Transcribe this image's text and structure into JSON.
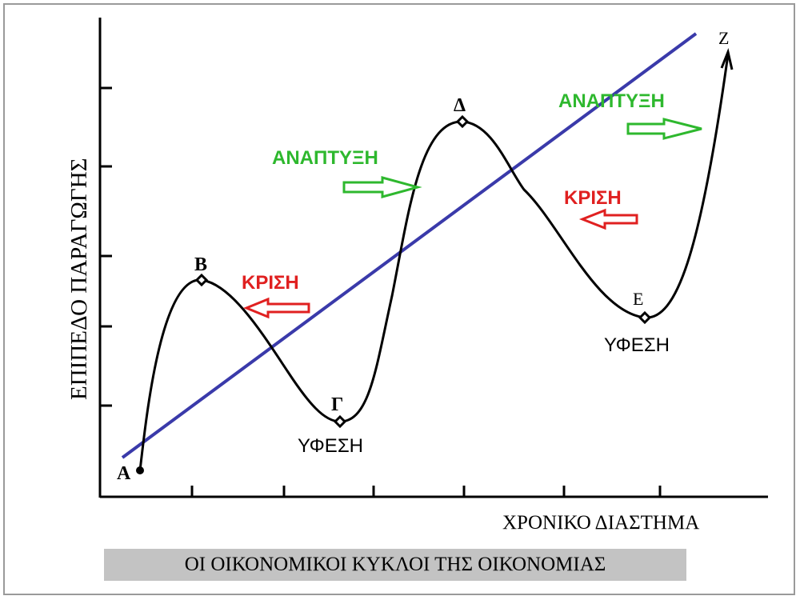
{
  "diagram": {
    "y_axis_label": "ΕΠΙΠΕΔΟ ΠΑΡΑΓΩΓΗΣ",
    "x_axis_label": "ΧΡΟΝΙΚΟ ΔΙΑΣΤΗΜΑ",
    "caption": "ΟΙ ΟΙΚΟΝΟΜΙΚΟΙ ΚΥΚΛΟΙ ΤΗΣ ΟΙΚΟΝΟΜΙΑΣ",
    "points": {
      "a": "Α",
      "b": "Β",
      "g": "Γ",
      "d": "Δ",
      "e": "Ε",
      "z": "Ζ"
    },
    "phases": {
      "crisis_1": "ΚΡΙΣΗ",
      "crisis_2": "ΚΡΙΣΗ",
      "recession_1": "ΥΦΕΣΗ",
      "recession_2": "ΥΦΕΣΗ",
      "growth_1": "ΑΝΑΠΤΥΞΗ",
      "growth_2": "ΑΝΑΠΤΥΞΗ"
    },
    "colors": {
      "cycle_curve": "#000000",
      "trend_line": "#3a3aaa",
      "crisis": "#e02020",
      "growth": "#2eb82e",
      "caption_bg": "#c3c3c3"
    }
  }
}
